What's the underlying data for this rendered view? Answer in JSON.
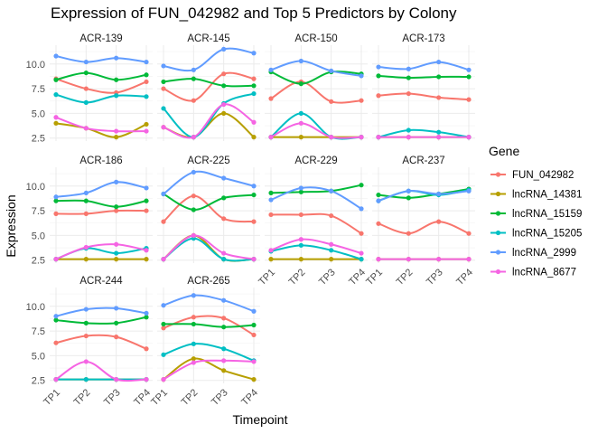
{
  "chart_data": {
    "type": "line",
    "title": "Expression of FUN_042982 and Top 5 Predictors by Colony",
    "xlabel": "Timepoint",
    "ylabel": "Expression",
    "x": [
      "TP1",
      "TP2",
      "TP3",
      "TP4"
    ],
    "y_ticks": [
      2.5,
      5.0,
      7.5,
      10.0
    ],
    "ylim": [
      2.2,
      11.9
    ],
    "grid": true,
    "legend_title": "Gene",
    "legend_position": "right",
    "genes": [
      {
        "name": "FUN_042982",
        "color": "#F8766D"
      },
      {
        "name": "lncRNA_14381",
        "color": "#B79F00"
      },
      {
        "name": "lncRNA_15159",
        "color": "#00BA38"
      },
      {
        "name": "lncRNA_15205",
        "color": "#00BFC4"
      },
      {
        "name": "lncRNA_2999",
        "color": "#619CFF"
      },
      {
        "name": "lncRNA_8677",
        "color": "#F564E3"
      }
    ],
    "panels": [
      {
        "colony": "ACR-139",
        "series": [
          {
            "gene": "FUN_042982",
            "values": [
              8.5,
              7.5,
              7.1,
              8.2
            ]
          },
          {
            "gene": "lncRNA_14381",
            "values": [
              4.0,
              3.5,
              2.6,
              3.9
            ]
          },
          {
            "gene": "lncRNA_15159",
            "values": [
              8.4,
              9.1,
              8.4,
              8.9
            ]
          },
          {
            "gene": "lncRNA_15205",
            "values": [
              6.9,
              6.1,
              6.8,
              6.7
            ]
          },
          {
            "gene": "lncRNA_2999",
            "values": [
              10.8,
              10.2,
              10.6,
              10.2
            ]
          },
          {
            "gene": "lncRNA_8677",
            "values": [
              4.6,
              3.5,
              3.2,
              3.2
            ]
          }
        ]
      },
      {
        "colony": "ACR-145",
        "series": [
          {
            "gene": "FUN_042982",
            "values": [
              7.5,
              6.3,
              9.0,
              8.5
            ]
          },
          {
            "gene": "lncRNA_14381",
            "values": [
              3.6,
              2.6,
              5.0,
              2.6
            ]
          },
          {
            "gene": "lncRNA_15159",
            "values": [
              8.2,
              8.5,
              7.8,
              7.8
            ]
          },
          {
            "gene": "lncRNA_15205",
            "values": [
              5.5,
              2.6,
              6.0,
              7.0
            ]
          },
          {
            "gene": "lncRNA_2999",
            "values": [
              9.8,
              9.4,
              11.5,
              11.1
            ]
          },
          {
            "gene": "lncRNA_8677",
            "values": [
              3.6,
              2.6,
              5.9,
              4.1
            ]
          }
        ]
      },
      {
        "colony": "ACR-150",
        "series": [
          {
            "gene": "FUN_042982",
            "values": [
              6.5,
              8.2,
              6.2,
              6.3
            ]
          },
          {
            "gene": "lncRNA_14381",
            "values": [
              2.6,
              2.6,
              2.6,
              2.6
            ]
          },
          {
            "gene": "lncRNA_15159",
            "values": [
              9.2,
              8.0,
              9.2,
              9.0
            ]
          },
          {
            "gene": "lncRNA_15205",
            "values": [
              2.6,
              5.0,
              2.6,
              2.6
            ]
          },
          {
            "gene": "lncRNA_2999",
            "values": [
              9.4,
              10.3,
              9.3,
              8.8
            ]
          },
          {
            "gene": "lncRNA_8677",
            "values": [
              2.6,
              4.0,
              2.6,
              2.6
            ]
          }
        ]
      },
      {
        "colony": "ACR-173",
        "series": [
          {
            "gene": "FUN_042982",
            "values": [
              6.8,
              7.0,
              6.6,
              6.4
            ]
          },
          {
            "gene": "lncRNA_14381",
            "values": [
              2.6,
              2.6,
              2.6,
              2.6
            ]
          },
          {
            "gene": "lncRNA_15159",
            "values": [
              8.8,
              8.6,
              8.7,
              8.7
            ]
          },
          {
            "gene": "lncRNA_15205",
            "values": [
              2.6,
              3.3,
              3.1,
              2.6
            ]
          },
          {
            "gene": "lncRNA_2999",
            "values": [
              9.7,
              9.5,
              10.2,
              9.4
            ]
          },
          {
            "gene": "lncRNA_8677",
            "values": [
              2.6,
              2.6,
              2.6,
              2.6
            ]
          }
        ]
      },
      {
        "colony": "ACR-186",
        "series": [
          {
            "gene": "FUN_042982",
            "values": [
              7.2,
              7.2,
              7.5,
              7.5
            ]
          },
          {
            "gene": "lncRNA_14381",
            "values": [
              2.6,
              2.6,
              2.6,
              2.6
            ]
          },
          {
            "gene": "lncRNA_15159",
            "values": [
              8.5,
              8.5,
              7.9,
              8.5
            ]
          },
          {
            "gene": "lncRNA_15205",
            "values": [
              2.6,
              3.7,
              3.2,
              3.7
            ]
          },
          {
            "gene": "lncRNA_2999",
            "values": [
              8.9,
              9.3,
              10.4,
              9.8
            ]
          },
          {
            "gene": "lncRNA_8677",
            "values": [
              2.6,
              3.8,
              4.1,
              3.5
            ]
          }
        ]
      },
      {
        "colony": "ACR-225",
        "series": [
          {
            "gene": "FUN_042982",
            "values": [
              6.4,
              9.0,
              6.7,
              6.4
            ]
          },
          {
            "gene": "lncRNA_14381",
            "values": [
              2.6,
              5.0,
              2.6,
              2.6
            ]
          },
          {
            "gene": "lncRNA_15159",
            "values": [
              9.2,
              7.6,
              8.8,
              9.1
            ]
          },
          {
            "gene": "lncRNA_15205",
            "values": [
              2.6,
              4.7,
              2.6,
              2.6
            ]
          },
          {
            "gene": "lncRNA_2999",
            "values": [
              9.2,
              11.4,
              10.8,
              10.0
            ]
          },
          {
            "gene": "lncRNA_8677",
            "values": [
              2.6,
              5.0,
              3.2,
              2.6
            ]
          }
        ]
      },
      {
        "colony": "ACR-229",
        "series": [
          {
            "gene": "FUN_042982",
            "values": [
              7.1,
              7.1,
              7.0,
              5.2
            ]
          },
          {
            "gene": "lncRNA_14381",
            "values": [
              2.6,
              2.6,
              2.6,
              2.6
            ]
          },
          {
            "gene": "lncRNA_15159",
            "values": [
              9.3,
              9.4,
              9.5,
              10.1
            ]
          },
          {
            "gene": "lncRNA_15205",
            "values": [
              3.4,
              4.0,
              3.5,
              2.6
            ]
          },
          {
            "gene": "lncRNA_2999",
            "values": [
              8.6,
              9.8,
              9.5,
              7.7
            ]
          },
          {
            "gene": "lncRNA_8677",
            "values": [
              3.5,
              4.6,
              4.1,
              3.2
            ]
          }
        ]
      },
      {
        "colony": "ACR-237",
        "series": [
          {
            "gene": "FUN_042982",
            "values": [
              6.2,
              5.2,
              6.4,
              5.2
            ]
          },
          {
            "gene": "lncRNA_14381",
            "values": [
              2.6,
              2.6,
              2.6,
              2.6
            ]
          },
          {
            "gene": "lncRNA_15159",
            "values": [
              9.1,
              8.8,
              9.2,
              9.7
            ]
          },
          {
            "gene": "lncRNA_15205",
            "values": [
              8.5,
              9.5,
              9.1,
              9.6
            ]
          },
          {
            "gene": "lncRNA_2999",
            "values": [
              8.5,
              9.5,
              9.2,
              9.5
            ]
          },
          {
            "gene": "lncRNA_8677",
            "values": [
              2.6,
              2.6,
              2.6,
              2.6
            ]
          }
        ]
      },
      {
        "colony": "ACR-244",
        "series": [
          {
            "gene": "FUN_042982",
            "values": [
              6.3,
              7.0,
              6.9,
              5.7
            ]
          },
          {
            "gene": "lncRNA_14381",
            "values": [
              2.6,
              2.6,
              2.6,
              2.6
            ]
          },
          {
            "gene": "lncRNA_15159",
            "values": [
              8.6,
              8.3,
              8.3,
              8.9
            ]
          },
          {
            "gene": "lncRNA_15205",
            "values": [
              2.6,
              2.6,
              2.6,
              2.6
            ]
          },
          {
            "gene": "lncRNA_2999",
            "values": [
              9.0,
              9.7,
              9.8,
              9.3
            ]
          },
          {
            "gene": "lncRNA_8677",
            "values": [
              2.6,
              4.4,
              2.6,
              2.6
            ]
          }
        ]
      },
      {
        "colony": "ACR-265",
        "series": [
          {
            "gene": "FUN_042982",
            "values": [
              7.8,
              8.9,
              8.8,
              7.1
            ]
          },
          {
            "gene": "lncRNA_14381",
            "values": [
              2.6,
              4.7,
              3.5,
              2.6
            ]
          },
          {
            "gene": "lncRNA_15159",
            "values": [
              8.2,
              8.2,
              7.9,
              8.1
            ]
          },
          {
            "gene": "lncRNA_15205",
            "values": [
              5.1,
              6.2,
              5.7,
              4.5
            ]
          },
          {
            "gene": "lncRNA_2999",
            "values": [
              10.1,
              11.1,
              10.6,
              9.5
            ]
          },
          {
            "gene": "lncRNA_8677",
            "values": [
              2.6,
              4.3,
              4.5,
              4.4
            ]
          }
        ]
      }
    ]
  }
}
